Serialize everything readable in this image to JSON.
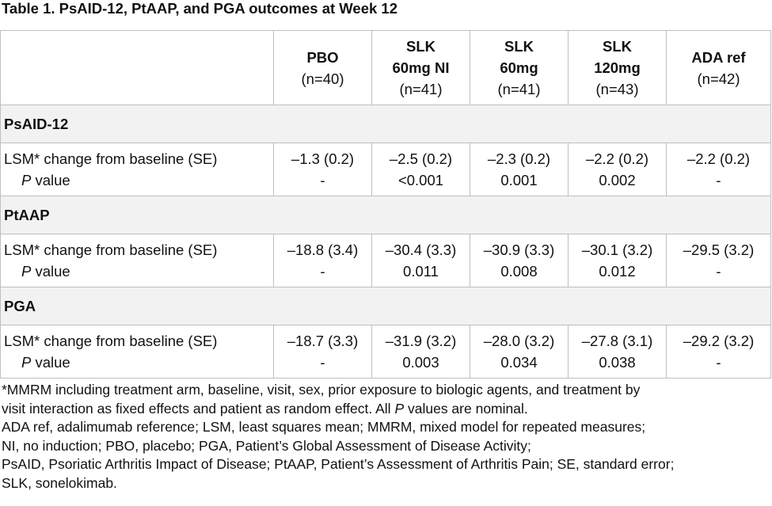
{
  "title": "Table 1. PsAID-12, PtAAP, and PGA outcomes at Week 12",
  "columns": [
    {
      "name_lines": [
        "PBO"
      ],
      "n": "(n=40)"
    },
    {
      "name_lines": [
        "SLK",
        "60mg NI"
      ],
      "n": "(n=41)"
    },
    {
      "name_lines": [
        "SLK",
        "60mg"
      ],
      "n": "(n=41)"
    },
    {
      "name_lines": [
        "SLK",
        "120mg"
      ],
      "n": "(n=43)"
    },
    {
      "name_lines": [
        "ADA ref"
      ],
      "n": "(n=42)"
    }
  ],
  "row_label_1": "LSM* change from baseline (SE)",
  "row_label_2_italic": "P",
  "row_label_2_rest": " value",
  "sections": [
    {
      "name": "PsAID-12",
      "change": [
        "–1.3 (0.2)",
        "–2.5 (0.2)",
        "–2.3 (0.2)",
        "–2.2 (0.2)",
        "–2.2 (0.2)"
      ],
      "p": [
        "-",
        "<0.001",
        "0.001",
        "0.002",
        "-"
      ]
    },
    {
      "name": "PtAAP",
      "change": [
        "–18.8 (3.4)",
        "–30.4 (3.3)",
        "–30.9 (3.3)",
        "–30.1 (3.2)",
        "–29.5 (3.2)"
      ],
      "p": [
        "-",
        "0.011",
        "0.008",
        "0.012",
        "-"
      ]
    },
    {
      "name": "PGA",
      "change": [
        "–18.7 (3.3)",
        "–31.9 (3.2)",
        "–28.0 (3.2)",
        "–27.8 (3.1)",
        "–29.2 (3.2)"
      ],
      "p": [
        "-",
        "0.003",
        "0.034",
        "0.038",
        "-"
      ]
    }
  ],
  "footnote": {
    "line1": "*MMRM including treatment arm, baseline, visit, sex, prior exposure to biologic agents, and treatment by",
    "line2_before": "visit interaction as fixed effects and patient as random effect. All ",
    "line2_italic": "P",
    "line2_after": " values are nominal.",
    "abbrev_lines": [
      "ADA ref, adalimumab reference; LSM, least squares mean; MMRM, mixed model for repeated measures;",
      "NI, no induction; PBO, placebo; PGA, Patient’s Global Assessment of Disease Activity;",
      "PsAID, Psoriatic Arthritis Impact of Disease; PtAAP, Patient’s Assessment of Arthritis Pain; SE, standard error;",
      "SLK, sonelokimab."
    ]
  }
}
